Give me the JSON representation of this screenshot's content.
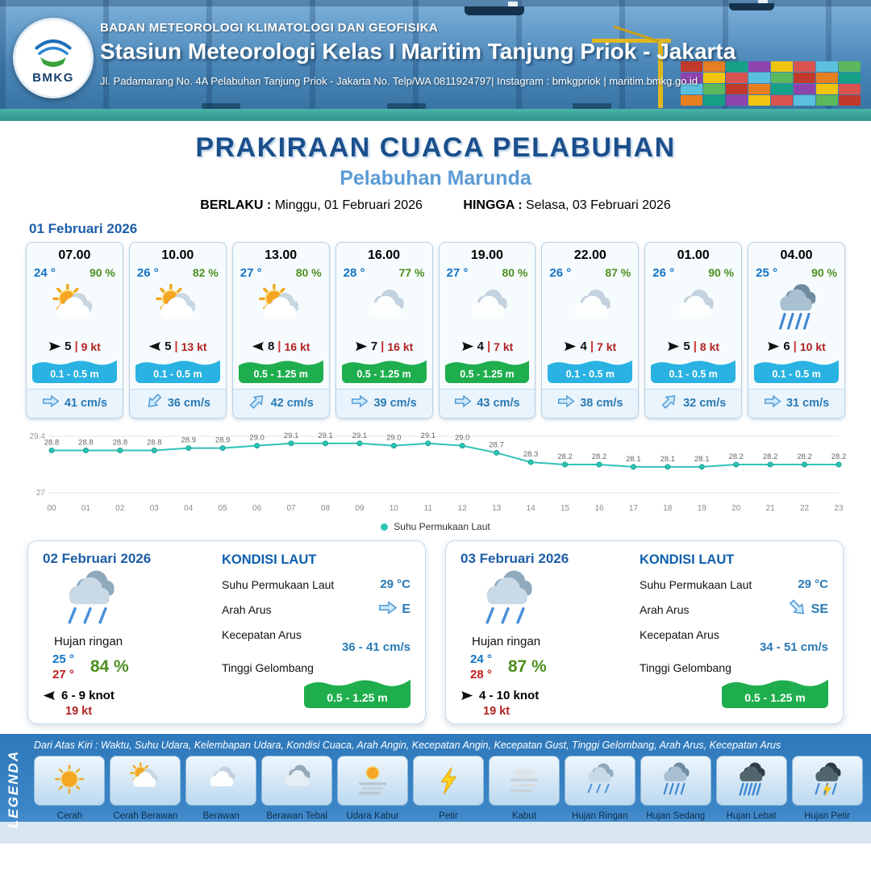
{
  "header": {
    "logo_text": "BMKG",
    "agency": "BADAN METEOROLOGI KLIMATOLOGI DAN GEOFISIKA",
    "station": "Stasiun Meteorologi Kelas I Maritim Tanjung Priok - Jakarta",
    "address": "Jl. Padamarang No. 4A Pelabuhan Tanjung Priok - Jakarta No. Telp/WA 0811924797| Instagram : bmkgpriok | maritim.bmkg.go.id"
  },
  "title": {
    "main": "PRAKIRAAN CUACA PELABUHAN",
    "port": "Pelabuhan Marunda",
    "valid_label": "BERLAKU :",
    "valid_value": "Minggu, 01 Februari 2026",
    "until_label": "HINGGA :",
    "until_value": "Selasa, 03 Februari 2026"
  },
  "day1": {
    "date": "01 Februari 2026",
    "cards": [
      {
        "time": "07.00",
        "temp": "24 °",
        "rh": "90 %",
        "icon": "cerah-berawan",
        "wind_deg": 0,
        "wind": "5",
        "gust": "9 kt",
        "wave": "0.1 - 0.5 m",
        "wave_color": "blue",
        "cur_deg": 0,
        "current": "41 cm/s"
      },
      {
        "time": "10.00",
        "temp": "26 °",
        "rh": "82 %",
        "icon": "cerah-berawan",
        "wind_deg": 180,
        "wind": "5",
        "gust": "13 kt",
        "wave": "0.1 - 0.5 m",
        "wave_color": "blue",
        "cur_deg": 135,
        "current": "36 cm/s"
      },
      {
        "time": "13.00",
        "temp": "27 °",
        "rh": "80 %",
        "icon": "cerah-berawan",
        "wind_deg": 180,
        "wind": "8",
        "gust": "16 kt",
        "wave": "0.5 - 1.25 m",
        "wave_color": "green",
        "cur_deg": -45,
        "current": "42 cm/s"
      },
      {
        "time": "16.00",
        "temp": "28 °",
        "rh": "77 %",
        "icon": "berawan",
        "wind_deg": 0,
        "wind": "7",
        "gust": "16 kt",
        "wave": "0.5 - 1.25 m",
        "wave_color": "green",
        "cur_deg": 0,
        "current": "39 cm/s"
      },
      {
        "time": "19.00",
        "temp": "27 °",
        "rh": "80 %",
        "icon": "berawan",
        "wind_deg": 0,
        "wind": "4",
        "gust": "7 kt",
        "wave": "0.5 - 1.25 m",
        "wave_color": "green",
        "cur_deg": 0,
        "current": "43 cm/s"
      },
      {
        "time": "22.00",
        "temp": "26 °",
        "rh": "87 %",
        "icon": "berawan",
        "wind_deg": 0,
        "wind": "4",
        "gust": "7 kt",
        "wave": "0.1 - 0.5 m",
        "wave_color": "blue",
        "cur_deg": 0,
        "current": "38 cm/s"
      },
      {
        "time": "01.00",
        "temp": "26 °",
        "rh": "90 %",
        "icon": "berawan",
        "wind_deg": 0,
        "wind": "5",
        "gust": "8 kt",
        "wave": "0.1 - 0.5 m",
        "wave_color": "blue",
        "cur_deg": -45,
        "current": "32 cm/s"
      },
      {
        "time": "04.00",
        "temp": "25 °",
        "rh": "90 %",
        "icon": "hujan-sedang",
        "wind_deg": 0,
        "wind": "6",
        "gust": "10 kt",
        "wave": "0.1 - 0.5 m",
        "wave_color": "blue",
        "cur_deg": 0,
        "current": "31 cm/s"
      }
    ]
  },
  "chart_data": {
    "type": "line",
    "series_label": "Suhu Permukaan Laut",
    "x": [
      "00",
      "01",
      "02",
      "03",
      "04",
      "05",
      "06",
      "07",
      "08",
      "09",
      "10",
      "11",
      "12",
      "13",
      "14",
      "15",
      "16",
      "17",
      "18",
      "19",
      "20",
      "21",
      "22",
      "23"
    ],
    "values": [
      28.8,
      28.8,
      28.8,
      28.8,
      28.9,
      28.9,
      29.0,
      29.1,
      29.1,
      29.1,
      29.0,
      29.1,
      29.0,
      28.7,
      28.3,
      28.2,
      28.2,
      28.1,
      28.1,
      28.1,
      28.2,
      28.2,
      28.2,
      28.2
    ],
    "ylim": [
      27,
      29.4
    ],
    "yticks": [
      29.4,
      27
    ],
    "line_color": "#2ec4b6",
    "grid": true,
    "legend_position": "bottom"
  },
  "days": [
    {
      "date": "02 Februari 2026",
      "icon": "hujan-ringan",
      "condition": "Hujan ringan",
      "temp_min": "25 °",
      "temp_max": "27 °",
      "rh": "84 %",
      "wind_deg": 180,
      "wind": "6 - 9 knot",
      "gust": "19 kt",
      "sea": {
        "title": "KONDISI LAUT",
        "sst_label": "Suhu Permukaan Laut",
        "sst": "29 °C",
        "dir_label": "Arah Arus",
        "dir": "E",
        "dir_deg": 0,
        "speed_label": "Kecepatan Arus",
        "speed": "36 - 41 cm/s",
        "wave_label": "Tinggi Gelombang",
        "wave": "0.5 - 1.25 m"
      }
    },
    {
      "date": "03 Februari 2026",
      "icon": "hujan-ringan",
      "condition": "Hujan ringan",
      "temp_min": "24 °",
      "temp_max": "28 °",
      "rh": "87 %",
      "wind_deg": 0,
      "wind": "4  - 10 knot",
      "gust": "19 kt",
      "sea": {
        "title": "KONDISI LAUT",
        "sst_label": "Suhu Permukaan Laut",
        "sst": "29 °C",
        "dir_label": "Arah Arus",
        "dir": "SE",
        "dir_deg": 45,
        "speed_label": "Kecepatan Arus",
        "speed": "34 - 51 cm/s",
        "wave_label": "Tinggi Gelombang",
        "wave": "0.5 - 1.25 m"
      }
    }
  ],
  "legend": {
    "title": "LEGENDA",
    "note": "Dari Atas Kiri : Waktu, Suhu Udara, Kelembapan Udara, Kondisi Cuaca, Arah Angin, Kecepatan Angin, Kecepatan Gust, Tinggi Gelombang, Arah Arus, Kecepatan Arus",
    "items": [
      {
        "label": "Cerah",
        "icon": "cerah"
      },
      {
        "label": "Cerah Berawan",
        "icon": "cerah-berawan"
      },
      {
        "label": "Berawan",
        "icon": "berawan"
      },
      {
        "label": "Berawan Tebal",
        "icon": "berawan-tebal"
      },
      {
        "label": "Udara Kabur",
        "icon": "udara-kabur"
      },
      {
        "label": "Petir",
        "icon": "petir"
      },
      {
        "label": "Kabut",
        "icon": "kabut"
      },
      {
        "label": "Hujan Ringan",
        "icon": "hujan-ringan"
      },
      {
        "label": "Hujan Sedang",
        "icon": "hujan-sedang"
      },
      {
        "label": "Hujan Lebat",
        "icon": "hujan-lebat"
      },
      {
        "label": "Hujan Petir",
        "icon": "hujan-petir"
      }
    ]
  },
  "colors": {
    "header_blue": "#3c7cb0",
    "title_navy": "#1b4f8c",
    "port_blue": "#5b9bd5",
    "temp_blue": "#1273c4",
    "temp_red": "#c02020",
    "humidity_green": "#4e8f1f",
    "gust_red": "#b22222",
    "wave_blue": "#29b2e2",
    "wave_green": "#1fae4d",
    "current_blue": "#2a7ab5",
    "sst_line_teal": "#2ec4b6",
    "legend_blue": "#2f79bb"
  }
}
